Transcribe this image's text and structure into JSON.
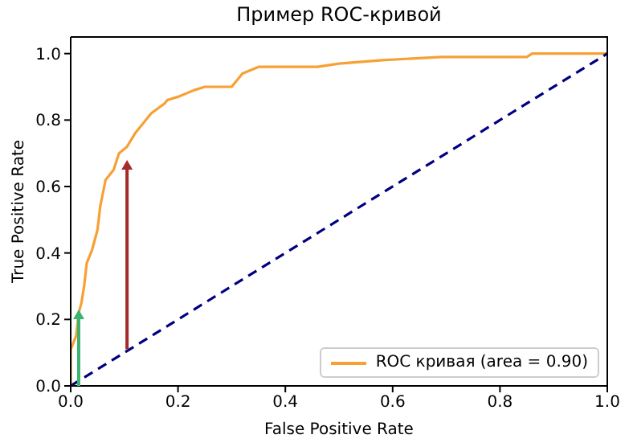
{
  "chart_data": {
    "type": "line",
    "title": "Пример ROC-кривой",
    "xlabel": "False Positive Rate",
    "ylabel": "True Positive Rate",
    "xlim": [
      0,
      1
    ],
    "ylim": [
      0,
      1.05
    ],
    "xticks": [
      {
        "value": 0,
        "label": "0.0"
      },
      0.2,
      0.4,
      0.6,
      0.8,
      {
        "value": 1,
        "label": "1.0"
      }
    ],
    "yticks": [
      {
        "value": 0,
        "label": "0.0"
      },
      0.2,
      0.4,
      0.6,
      0.8,
      {
        "value": 1,
        "label": "1.0"
      }
    ],
    "grid": false,
    "legend": "bottom right",
    "marker": "none",
    "series": [
      {
        "name": "ROC кривая (area = 0.90)",
        "color": "#f7a035",
        "line_style": "solid",
        "x": [
          0,
          0,
          0.01,
          0.015,
          0.02,
          0.025,
          0.03,
          0.04,
          0.05,
          0.055,
          0.065,
          0.08,
          0.09,
          0.105,
          0.12,
          0.15,
          0.175,
          0.18,
          0.2,
          0.23,
          0.25,
          0.3,
          0.32,
          0.35,
          0.46,
          0.5,
          0.58,
          0.69,
          0.85,
          0.86,
          1
        ],
        "values": [
          0,
          0.11,
          0.15,
          0.22,
          0.25,
          0.3,
          0.37,
          0.41,
          0.47,
          0.54,
          0.62,
          0.65,
          0.7,
          0.72,
          0.76,
          0.82,
          0.85,
          0.86,
          0.87,
          0.89,
          0.9,
          0.9,
          0.94,
          0.96,
          0.96,
          0.97,
          0.98,
          0.99,
          0.99,
          1,
          1
        ]
      },
      {
        "color": "#000080",
        "line_style": "dashed",
        "x": [
          0,
          1
        ],
        "values": [
          0,
          1
        ]
      }
    ]
  }
}
